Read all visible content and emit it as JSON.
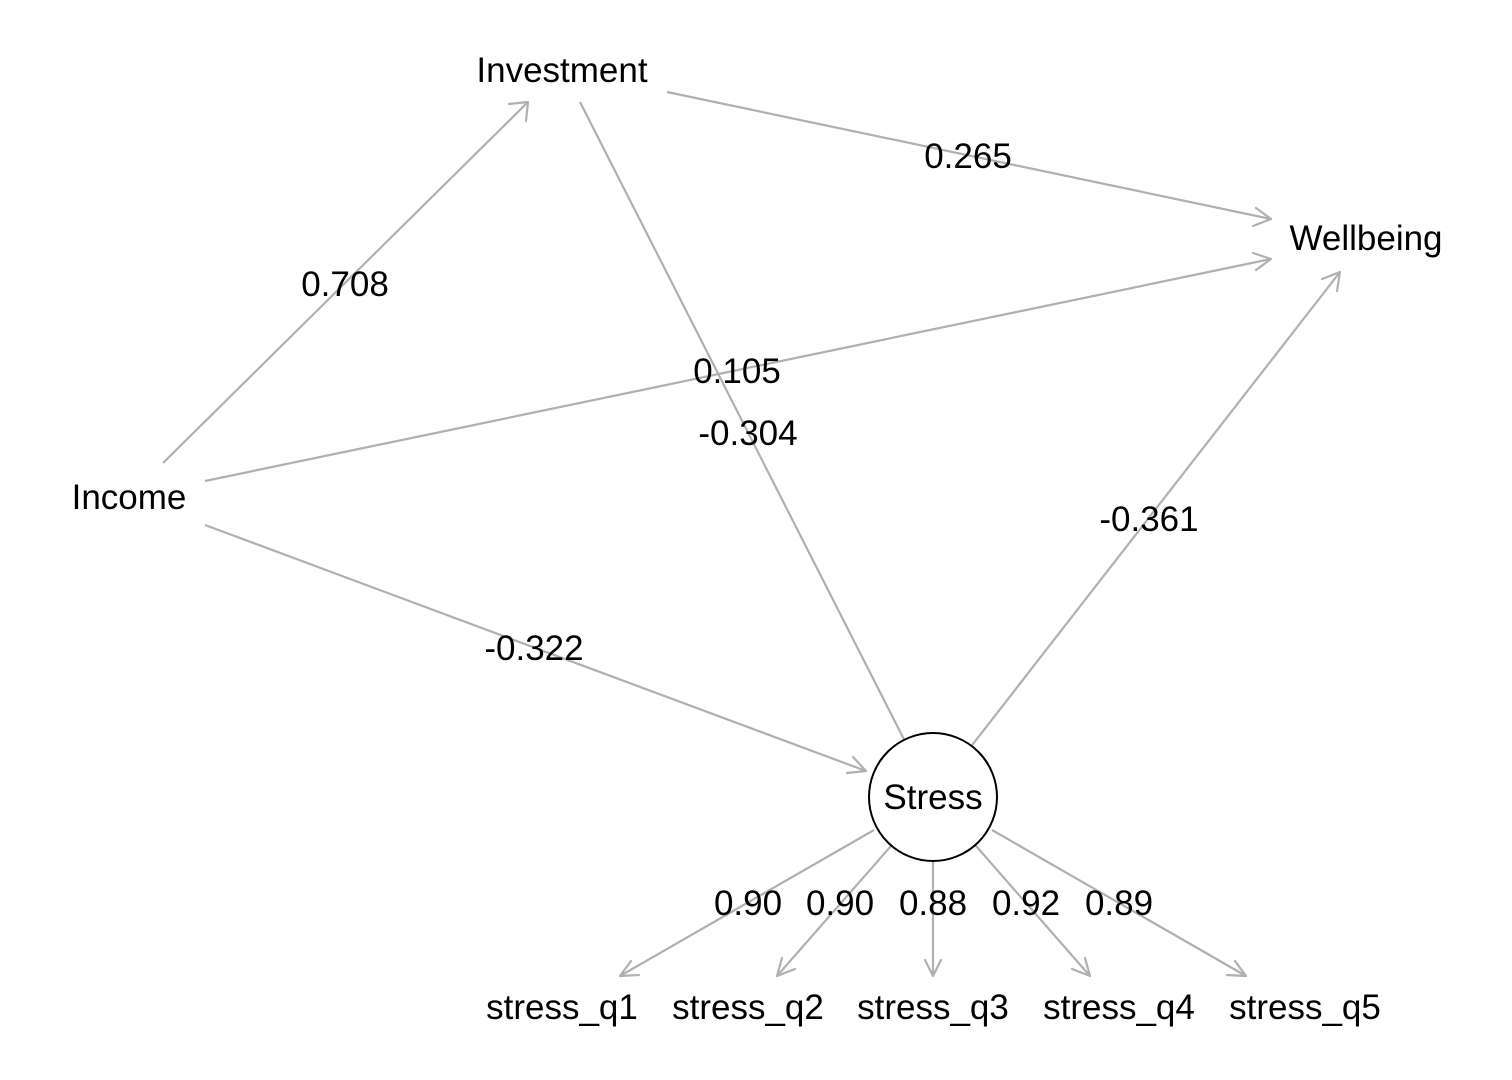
{
  "diagram": {
    "type": "path-diagram",
    "nodes": {
      "investment": "Investment",
      "wellbeing": "Wellbeing",
      "income": "Income",
      "stress": "Stress",
      "stress_q1": "stress_q1",
      "stress_q2": "stress_q2",
      "stress_q3": "stress_q3",
      "stress_q4": "stress_q4",
      "stress_q5": "stress_q5"
    },
    "paths": {
      "income_to_investment": "0.708",
      "investment_to_wellbeing": "0.265",
      "income_to_wellbeing": "0.105",
      "investment_to_stress": "-0.304",
      "stress_to_wellbeing": "-0.361",
      "income_to_stress": "-0.322"
    },
    "loadings": {
      "stress_q1": "0.90",
      "stress_q2": "0.90",
      "stress_q3": "0.88",
      "stress_q4": "0.92",
      "stress_q5": "0.89"
    },
    "colors": {
      "edge": "#b0b0b0",
      "text": "#000000",
      "circle_stroke": "#000000",
      "background": "#ffffff"
    }
  }
}
